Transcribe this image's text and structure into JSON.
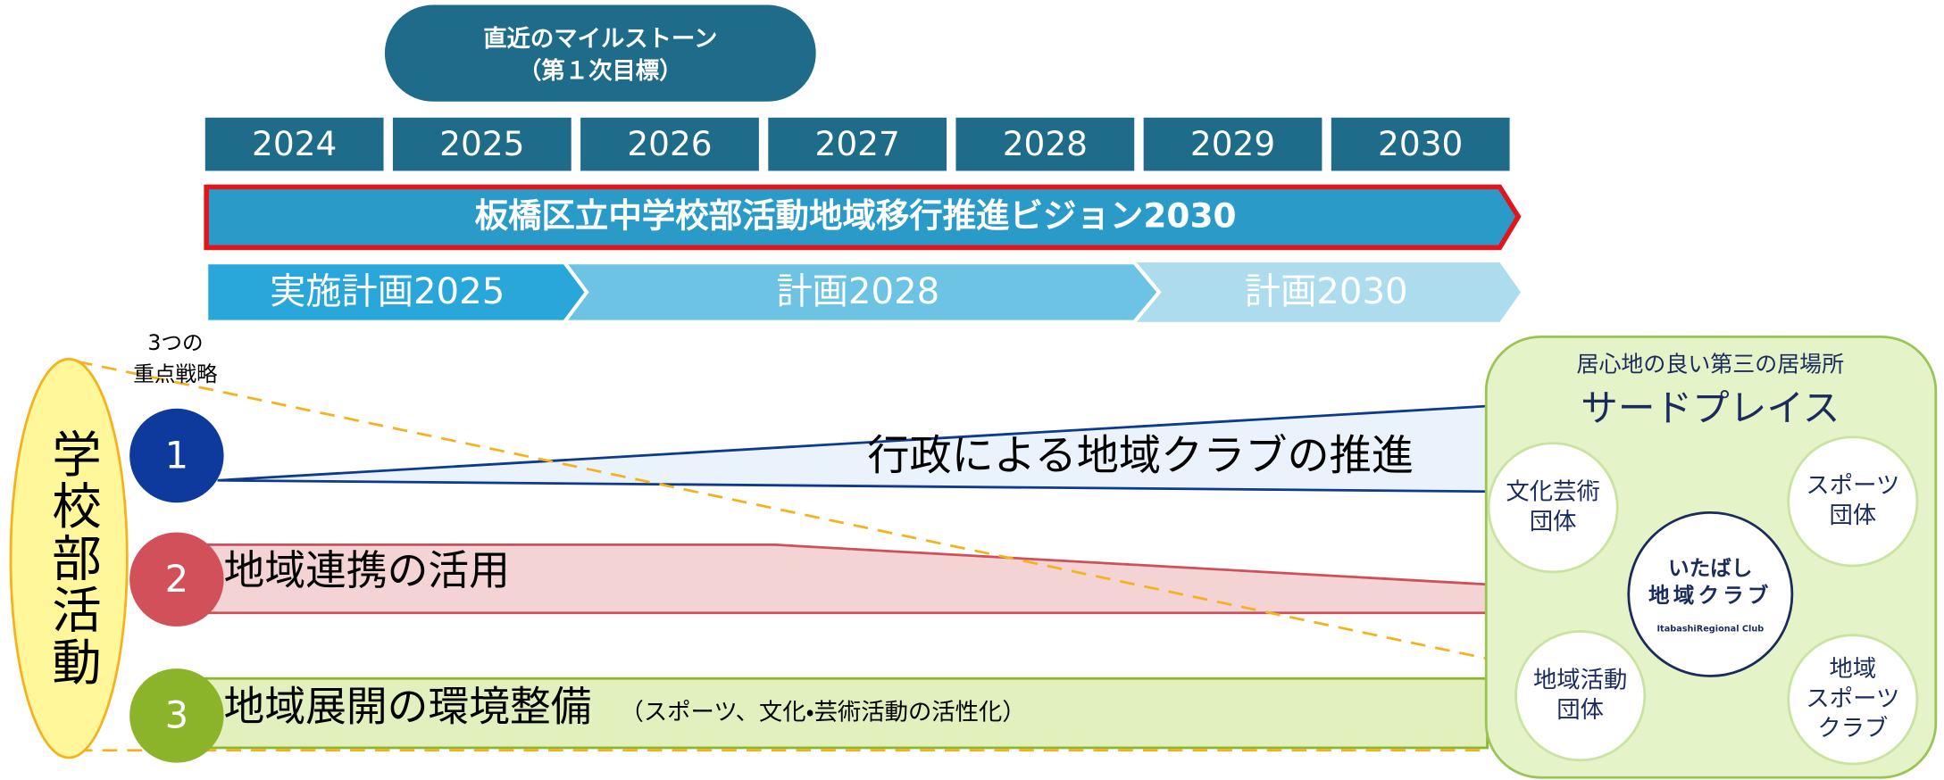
{
  "milestone": {
    "line1": "直近のマイルストーン",
    "line2": "（第１次目標）"
  },
  "years": [
    "2024",
    "2025",
    "2026",
    "2027",
    "2028",
    "2029",
    "2030"
  ],
  "vision": "板橋区立中学校部活動地域移行推進ビジョン2030",
  "phases": [
    "実施計画2025",
    "計画2028",
    "計画2030"
  ],
  "strategy_label": [
    "3つの",
    "重点戦略"
  ],
  "club_activity": "学校部活動",
  "strategies": [
    {
      "number": "1",
      "text": "行政による地域クラブの推進"
    },
    {
      "number": "2",
      "text": "地域連携の活用"
    },
    {
      "number": "3",
      "text": "地域展開の環境整備",
      "note": "（スポーツ、文化・芸術活動の活性化）"
    }
  ],
  "third_place": {
    "subtitle": "居心地の良い第三の居場所",
    "title": "サードプレイス",
    "groups": [
      [
        "文化芸術",
        "団体"
      ],
      [
        "スポーツ",
        "団体"
      ],
      [
        "地域活動",
        "団体"
      ],
      [
        "地域",
        "スポーツ",
        "クラブ"
      ]
    ],
    "center": {
      "line1": "いたばし",
      "line2": "地域クラブ",
      "line3": "ItabashiRegional Club"
    }
  }
}
